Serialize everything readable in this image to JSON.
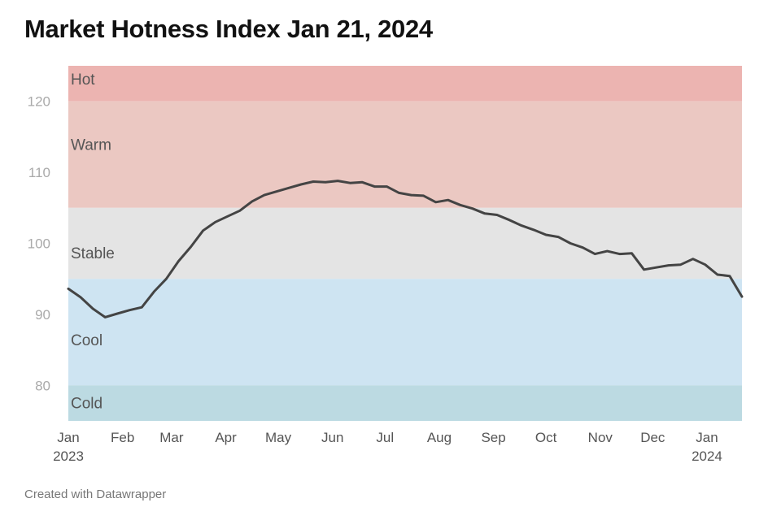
{
  "title": "Market Hotness Index Jan 21, 2024",
  "footer": "Created with Datawrapper",
  "chart_data": {
    "type": "line",
    "title": "Market Hotness Index Jan 21, 2024",
    "ylim": [
      75,
      125
    ],
    "yticks": [
      80,
      90,
      100,
      110,
      120
    ],
    "xlim": [
      "2023-01-01",
      "2024-01-21"
    ],
    "xticks": [
      {
        "date": "2023-01-01",
        "label": "Jan",
        "sublabel": "2023"
      },
      {
        "date": "2023-02-01",
        "label": "Feb",
        "sublabel": ""
      },
      {
        "date": "2023-03-01",
        "label": "Mar",
        "sublabel": ""
      },
      {
        "date": "2023-04-01",
        "label": "Apr",
        "sublabel": ""
      },
      {
        "date": "2023-05-01",
        "label": "May",
        "sublabel": ""
      },
      {
        "date": "2023-06-01",
        "label": "Jun",
        "sublabel": ""
      },
      {
        "date": "2023-07-01",
        "label": "Jul",
        "sublabel": ""
      },
      {
        "date": "2023-08-01",
        "label": "Aug",
        "sublabel": ""
      },
      {
        "date": "2023-09-01",
        "label": "Sep",
        "sublabel": ""
      },
      {
        "date": "2023-10-01",
        "label": "Oct",
        "sublabel": ""
      },
      {
        "date": "2023-11-01",
        "label": "Nov",
        "sublabel": ""
      },
      {
        "date": "2023-12-01",
        "label": "Dec",
        "sublabel": ""
      },
      {
        "date": "2024-01-01",
        "label": "Jan",
        "sublabel": "2024"
      }
    ],
    "bands": [
      {
        "label": "Hot",
        "from": 120,
        "to": 125,
        "color": "#ecb4b1"
      },
      {
        "label": "Warm",
        "from": 105,
        "to": 120,
        "color": "#ebc8c2"
      },
      {
        "label": "Stable",
        "from": 95,
        "to": 105,
        "color": "#e4e4e4"
      },
      {
        "label": "Cool",
        "from": 80,
        "to": 95,
        "color": "#cee4f2"
      },
      {
        "label": "Cold",
        "from": 75,
        "to": 80,
        "color": "#bcdae2"
      }
    ],
    "series": [
      {
        "color": "#444444",
        "points": [
          [
            "2023-01-01",
            93.6
          ],
          [
            "2023-01-08",
            92.4
          ],
          [
            "2023-01-15",
            90.8
          ],
          [
            "2023-01-22",
            89.6
          ],
          [
            "2023-01-29",
            90.1
          ],
          [
            "2023-02-05",
            90.6
          ],
          [
            "2023-02-12",
            91.0
          ],
          [
            "2023-02-19",
            93.2
          ],
          [
            "2023-02-26",
            95.0
          ],
          [
            "2023-03-05",
            97.5
          ],
          [
            "2023-03-12",
            99.5
          ],
          [
            "2023-03-19",
            101.8
          ],
          [
            "2023-03-26",
            103.0
          ],
          [
            "2023-04-02",
            103.8
          ],
          [
            "2023-04-09",
            104.6
          ],
          [
            "2023-04-16",
            105.9
          ],
          [
            "2023-04-23",
            106.8
          ],
          [
            "2023-04-30",
            107.3
          ],
          [
            "2023-05-07",
            107.8
          ],
          [
            "2023-05-14",
            108.3
          ],
          [
            "2023-05-21",
            108.7
          ],
          [
            "2023-05-28",
            108.6
          ],
          [
            "2023-06-04",
            108.8
          ],
          [
            "2023-06-11",
            108.5
          ],
          [
            "2023-06-18",
            108.6
          ],
          [
            "2023-06-25",
            108.0
          ],
          [
            "2023-07-02",
            108.0
          ],
          [
            "2023-07-09",
            107.1
          ],
          [
            "2023-07-16",
            106.8
          ],
          [
            "2023-07-23",
            106.7
          ],
          [
            "2023-07-30",
            105.8
          ],
          [
            "2023-08-06",
            106.1
          ],
          [
            "2023-08-13",
            105.4
          ],
          [
            "2023-08-20",
            104.9
          ],
          [
            "2023-08-27",
            104.2
          ],
          [
            "2023-09-03",
            104.0
          ],
          [
            "2023-09-10",
            103.3
          ],
          [
            "2023-09-17",
            102.5
          ],
          [
            "2023-09-24",
            101.9
          ],
          [
            "2023-10-01",
            101.2
          ],
          [
            "2023-10-08",
            100.9
          ],
          [
            "2023-10-15",
            100.0
          ],
          [
            "2023-10-22",
            99.4
          ],
          [
            "2023-10-29",
            98.5
          ],
          [
            "2023-11-05",
            98.9
          ],
          [
            "2023-11-12",
            98.5
          ],
          [
            "2023-11-19",
            98.6
          ],
          [
            "2023-11-26",
            96.3
          ],
          [
            "2023-12-03",
            96.6
          ],
          [
            "2023-12-10",
            96.9
          ],
          [
            "2023-12-17",
            97.0
          ],
          [
            "2023-12-24",
            97.8
          ],
          [
            "2023-12-31",
            97.0
          ],
          [
            "2024-01-07",
            95.6
          ],
          [
            "2024-01-14",
            95.4
          ],
          [
            "2024-01-21",
            92.5
          ]
        ]
      }
    ]
  }
}
